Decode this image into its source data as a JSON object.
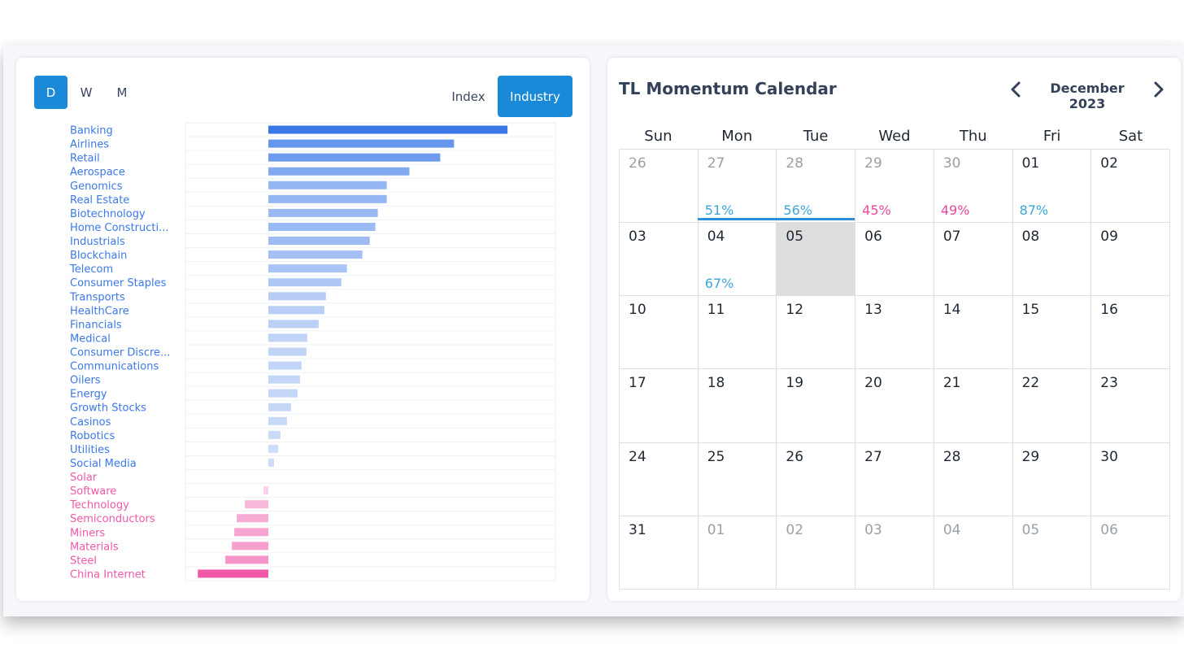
{
  "sectors": {
    "periods": [
      "D",
      "W",
      "M"
    ],
    "active_period": "D",
    "index_label": "Index",
    "industry_label": "Industry",
    "colors": {
      "positive": "#3b78e7",
      "negative": "#f058a8"
    },
    "chart_data": {
      "type": "bar",
      "orientation": "horizontal",
      "grid": true,
      "categories": [
        "Banking",
        "Airlines",
        "Retail",
        "Aerospace",
        "Genomics",
        "Real Estate",
        "Biotechnology",
        "Home Constructi...",
        "Industrials",
        "Blockchain",
        "Telecom",
        "Consumer Staples",
        "Transports",
        "HealthCare",
        "Financials",
        "Medical",
        "Consumer Discre...",
        "Communications",
        "Oilers",
        "Energy",
        "Growth Stocks",
        "Casinos",
        "Robotics",
        "Utilities",
        "Social Media",
        "Solar",
        "Software",
        "Technology",
        "Semiconductors",
        "Miners",
        "Materials",
        "Steel",
        "China Internet"
      ],
      "values": [
        2.95,
        2.29,
        2.12,
        1.74,
        1.46,
        1.46,
        1.35,
        1.32,
        1.25,
        1.16,
        0.97,
        0.9,
        0.71,
        0.69,
        0.62,
        0.48,
        0.47,
        0.41,
        0.39,
        0.36,
        0.28,
        0.23,
        0.15,
        0.12,
        0.07,
        0.0,
        -0.06,
        -0.29,
        -0.39,
        -0.42,
        -0.45,
        -0.53,
        -0.87
      ]
    }
  },
  "calendar": {
    "title": "TL Momentum Calendar",
    "month_label": "December 2023",
    "weekdays": [
      "Sun",
      "Mon",
      "Tue",
      "Wed",
      "Thu",
      "Fri",
      "Sat"
    ],
    "colors": {
      "up": "#3aa6d8",
      "down": "#e8489c",
      "today": "#dedede"
    },
    "weeks": [
      [
        {
          "day": "26",
          "other": true
        },
        {
          "day": "27",
          "other": true,
          "pct": "51%",
          "dir": "up"
        },
        {
          "day": "28",
          "other": true,
          "pct": "56%",
          "dir": "up"
        },
        {
          "day": "29",
          "other": true,
          "pct": "45%",
          "dir": "down"
        },
        {
          "day": "30",
          "other": true,
          "pct": "49%",
          "dir": "down"
        },
        {
          "day": "01",
          "pct": "87%",
          "dir": "up"
        },
        {
          "day": "02"
        }
      ],
      [
        {
          "day": "03"
        },
        {
          "day": "04",
          "pct": "67%",
          "dir": "up"
        },
        {
          "day": "05",
          "today": true
        },
        {
          "day": "06"
        },
        {
          "day": "07"
        },
        {
          "day": "08"
        },
        {
          "day": "09"
        }
      ],
      [
        {
          "day": "10"
        },
        {
          "day": "11"
        },
        {
          "day": "12"
        },
        {
          "day": "13"
        },
        {
          "day": "14"
        },
        {
          "day": "15"
        },
        {
          "day": "16"
        }
      ],
      [
        {
          "day": "17"
        },
        {
          "day": "18"
        },
        {
          "day": "19"
        },
        {
          "day": "20"
        },
        {
          "day": "21"
        },
        {
          "day": "22"
        },
        {
          "day": "23"
        }
      ],
      [
        {
          "day": "24"
        },
        {
          "day": "25"
        },
        {
          "day": "26"
        },
        {
          "day": "27"
        },
        {
          "day": "28"
        },
        {
          "day": "29"
        },
        {
          "day": "30"
        }
      ],
      [
        {
          "day": "31"
        },
        {
          "day": "01",
          "other": true
        },
        {
          "day": "02",
          "other": true
        },
        {
          "day": "03",
          "other": true
        },
        {
          "day": "04",
          "other": true
        },
        {
          "day": "05",
          "other": true
        },
        {
          "day": "06",
          "other": true
        }
      ]
    ]
  }
}
